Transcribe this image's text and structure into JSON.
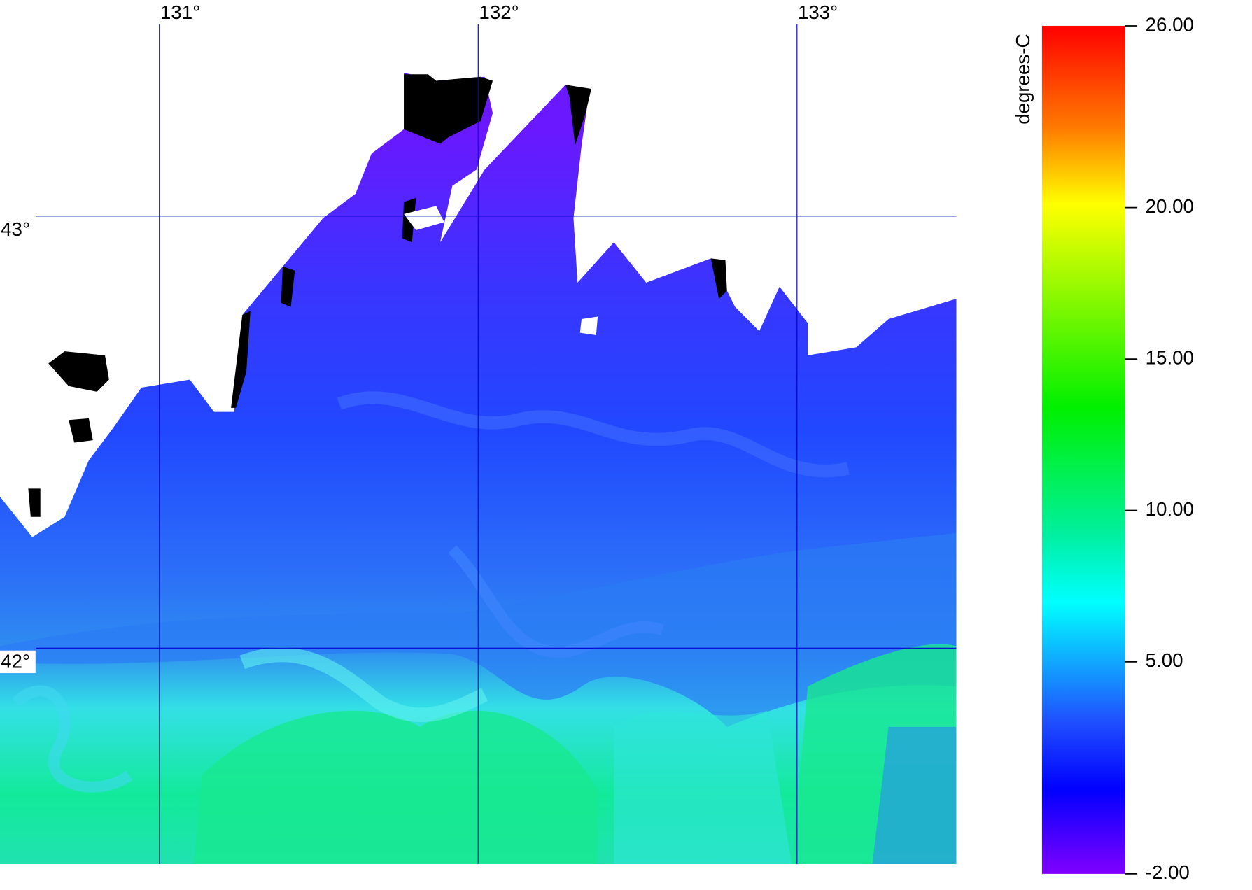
{
  "map": {
    "xlim": [
      130.5,
      133.5
    ],
    "xticks": [
      {
        "value": 131,
        "label": "131°"
      },
      {
        "value": 132,
        "label": "132°"
      },
      {
        "value": 133,
        "label": "133°"
      }
    ],
    "ylim": [
      41.5,
      43.5
    ],
    "yticks": [
      {
        "value": 43,
        "label": "43°"
      },
      {
        "value": 42,
        "label": "42°"
      }
    ],
    "grid": true,
    "grid_color": "#0000cc",
    "colorbar": {
      "label": "degrees-C",
      "lim": [
        -2,
        26
      ],
      "ticks": [
        {
          "value": 26,
          "label": "26.00"
        },
        {
          "value": 20,
          "label": "20.00"
        },
        {
          "value": 15,
          "label": "15.00"
        },
        {
          "value": 10,
          "label": "10.00"
        },
        {
          "value": 5,
          "label": "5.00"
        },
        {
          "value": -2,
          "label": "-2.00"
        }
      ]
    }
  }
}
